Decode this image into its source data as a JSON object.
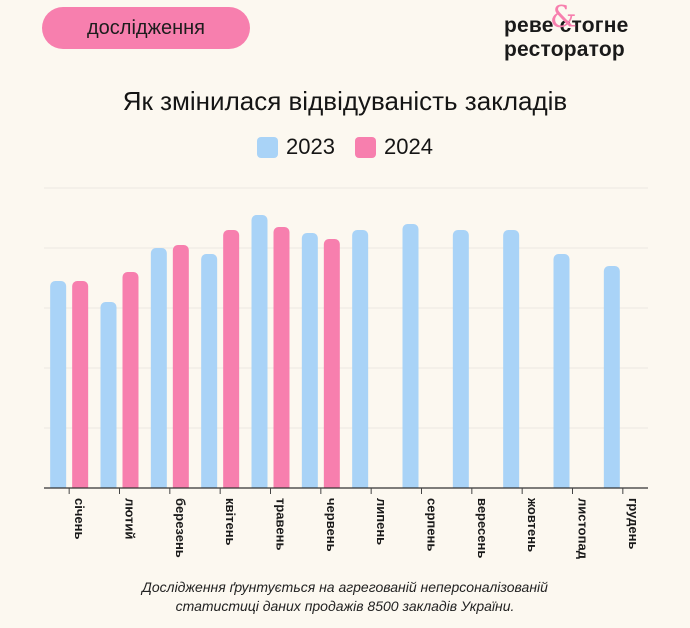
{
  "badge": {
    "label": "дослідження"
  },
  "logo": {
    "line1": "реве стогне",
    "line2": "ресторатор",
    "amp": "&"
  },
  "chart_data": {
    "type": "bar",
    "title": "Як змінилася відвідуваність закладів",
    "categories": [
      "січень",
      "лютий",
      "березень",
      "квітень",
      "травень",
      "червень",
      "липень",
      "серпень",
      "вересень",
      "жовтень",
      "листопад",
      "грудень"
    ],
    "series": [
      {
        "name": "2023",
        "color": "#a9d3f7",
        "values": [
          69,
          62,
          80,
          78,
          91,
          85,
          86,
          88,
          86,
          86,
          78,
          74
        ]
      },
      {
        "name": "2024",
        "color": "#f77fae",
        "values": [
          69,
          72,
          81,
          86,
          87,
          83,
          null,
          null,
          null,
          null,
          null,
          null
        ]
      }
    ],
    "ylim": [
      0,
      100
    ],
    "grid": true,
    "legend": "top"
  },
  "footnote": {
    "line1": "Дослідження ґрунтується на агрегованій неперсоналізованій",
    "line2": "статистиці даних продажів 8500 закладів України."
  }
}
